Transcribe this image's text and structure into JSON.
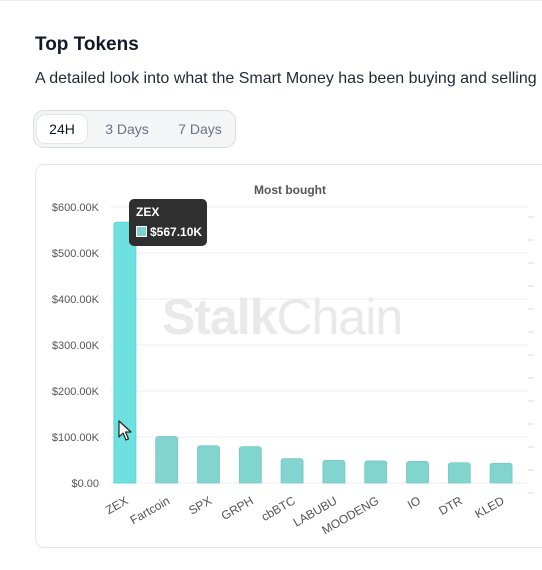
{
  "header": {
    "title": "Top Tokens",
    "subtitle": "A detailed look into what the Smart Money has been buying and selling"
  },
  "tabs": [
    {
      "label": "24H",
      "active": true
    },
    {
      "label": "3 Days",
      "active": false
    },
    {
      "label": "7 Days",
      "active": false
    }
  ],
  "watermark": {
    "part1": "Stalk",
    "part2": "Chain"
  },
  "tooltip": {
    "name": "ZEX",
    "value": "$567.10K",
    "swatch_color": "#7ecfcf"
  },
  "colors": {
    "highlight_bar": "#6ee0e0",
    "bar": "#82d4cf",
    "grid": "#ececec"
  },
  "chart_data": {
    "type": "bar",
    "title": "Most bought",
    "categories": [
      "ZEX",
      "Fartcoin",
      "SPX",
      "GRPH",
      "cbBTC",
      "LABUBU",
      "MOODENG",
      "IO",
      "DTR",
      "KLED"
    ],
    "values": [
      567100,
      101000,
      81000,
      79000,
      53000,
      49000,
      48000,
      47000,
      44000,
      43000
    ],
    "highlighted": "ZEX",
    "ylim": [
      0,
      600000
    ],
    "yticks": [
      0,
      100000,
      200000,
      300000,
      400000,
      500000,
      600000
    ],
    "ytick_labels": [
      "$0.00",
      "$100.00K",
      "$200.00K",
      "$300.00K",
      "$400.00K",
      "$500.00K",
      "$600.00K"
    ],
    "grid": true,
    "legend": "none"
  }
}
